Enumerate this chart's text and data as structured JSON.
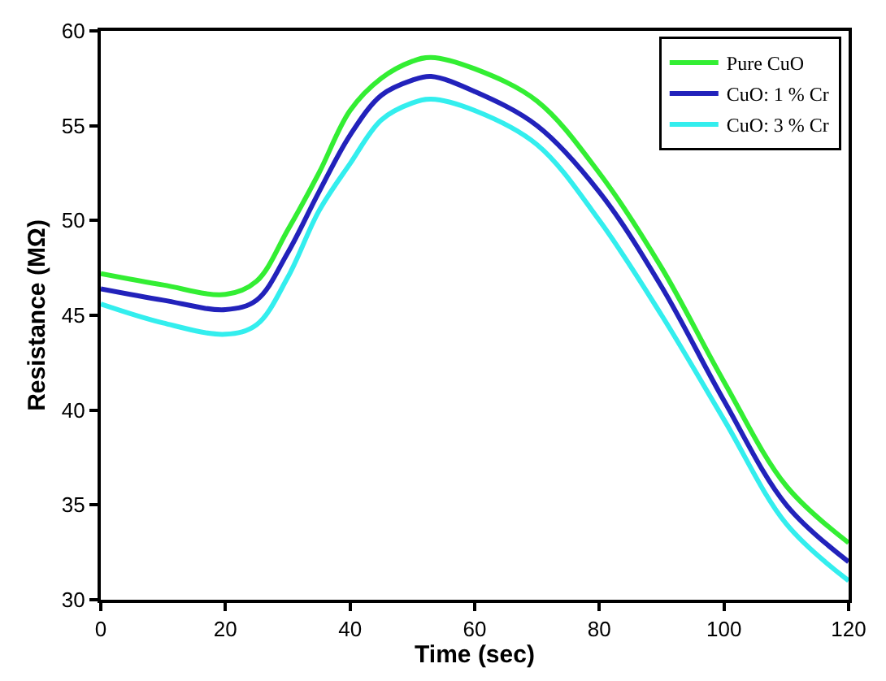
{
  "chart_data": {
    "type": "line",
    "xlabel": "Time (sec)",
    "ylabel": "Resistance (MΩ)",
    "x": [
      0,
      10,
      20,
      25,
      30,
      35,
      40,
      45,
      50,
      53,
      60,
      70,
      80,
      90,
      100,
      110,
      120
    ],
    "series": [
      {
        "name": "Pure CuO",
        "color": "#33ee33",
        "values": [
          47.2,
          46.6,
          46.1,
          46.8,
          49.5,
          52.5,
          55.8,
          57.5,
          58.4,
          58.6,
          58.0,
          56.3,
          52.5,
          47.5,
          41.5,
          36.0,
          33.0
        ]
      },
      {
        "name": "CuO: 1 % Cr",
        "color": "#2222bb",
        "values": [
          46.4,
          45.8,
          45.3,
          45.8,
          48.3,
          51.5,
          54.5,
          56.6,
          57.4,
          57.6,
          56.8,
          55.0,
          51.5,
          46.5,
          40.5,
          35.0,
          32.0
        ]
      },
      {
        "name": "CuO: 3 % Cr",
        "color": "#33eeee",
        "values": [
          45.6,
          44.6,
          44.0,
          44.5,
          47.0,
          50.5,
          53.0,
          55.3,
          56.2,
          56.4,
          55.8,
          54.0,
          50.0,
          45.0,
          39.5,
          34.0,
          31.0
        ]
      }
    ],
    "xlim": [
      0,
      120
    ],
    "xticks": [
      0,
      20,
      40,
      60,
      80,
      100,
      120
    ],
    "ylim": [
      30,
      60
    ],
    "yticks": [
      30,
      35,
      40,
      45,
      50,
      55,
      60
    ],
    "legend": "top right",
    "marker": "none",
    "line_style": "solid"
  }
}
